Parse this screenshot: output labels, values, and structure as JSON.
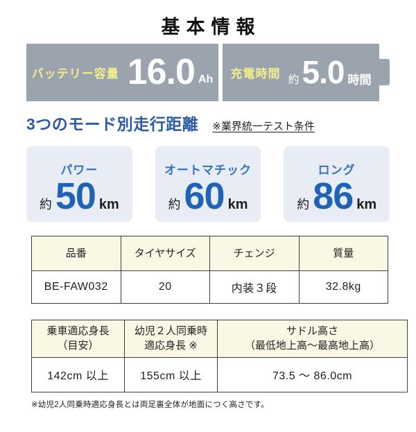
{
  "title": "基本情報",
  "battery_banner": {
    "capacity": {
      "label": "バッテリー容量",
      "value": "16.0",
      "unit": "Ah"
    },
    "charge_time": {
      "label": "充電時間",
      "approx": "約",
      "value": "5.0",
      "unit": "時間"
    }
  },
  "range_section": {
    "heading": "3つのモード別走行距離",
    "note": "※業界統一テスト条件",
    "modes": [
      {
        "label": "パワー",
        "approx": "約",
        "value": "50",
        "unit": "km"
      },
      {
        "label": "オートマチック",
        "approx": "約",
        "value": "60",
        "unit": "km"
      },
      {
        "label": "ロング",
        "approx": "約",
        "value": "86",
        "unit": "km"
      }
    ]
  },
  "spec_table": {
    "headers": [
      "品番",
      "タイヤサイズ",
      "チェンジ",
      "質量"
    ],
    "row": [
      "BE-FAW032",
      "20",
      "内装３段",
      "32.8kg"
    ]
  },
  "fit_table": {
    "headers": [
      "乗車適応身長\n（目安）",
      "幼児２人同乗時\n適応身長 ※",
      "サドル高さ\n（最低地上高～最高地上高）"
    ],
    "row": [
      "142cm 以上",
      "155cm 以上",
      "73.5 ～ 86.0cm"
    ]
  },
  "footnote": "※幼児2人同乗時適応身長とは両足裏全体が地面につく高さです。",
  "colors": {
    "banner_gray": "#9BA3AE",
    "accent_yellow": "#F1EE8B",
    "heading_blue": "#2C5AA6",
    "mode_label_blue": "#3273BD",
    "value_blue": "#1E63B5",
    "card_bg": "#E7ECF5",
    "table_header_bg": "#FAF7E4",
    "table_border": "#3D3D3D"
  }
}
